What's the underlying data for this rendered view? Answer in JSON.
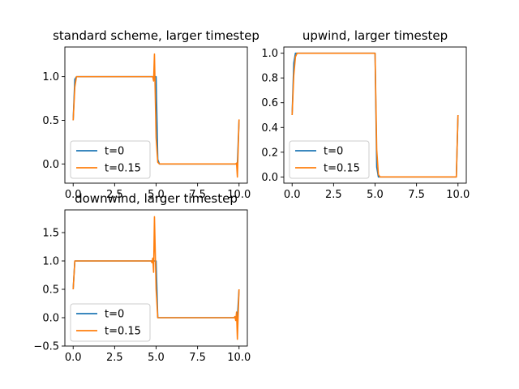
{
  "colors": {
    "series0": "#1f77b4",
    "series1": "#ff7f0e"
  },
  "chart_data": [
    {
      "type": "line",
      "title": "standard scheme, larger timestep",
      "xlim": [
        -0.5,
        10.5
      ],
      "ylim": [
        -0.22,
        1.34
      ],
      "xticks": [
        0,
        2.5,
        5,
        7.5,
        10
      ],
      "xtick_labels": [
        "0.0",
        "2.5",
        "5.0",
        "7.5",
        "10.0"
      ],
      "yticks": [
        0,
        0.5,
        1
      ],
      "ytick_labels": [
        "0.0",
        "0.5",
        "1.0"
      ],
      "legend": "lower-left",
      "grid": false,
      "series": [
        {
          "name": "t=0",
          "x": [
            0,
            0.1,
            0.2,
            4.8,
            4.9,
            5.0,
            5.1,
            5.2,
            9.8,
            9.9,
            10.0
          ],
          "y": [
            0.5,
            0.97,
            1.0,
            1.0,
            1.0,
            1.0,
            0.05,
            0.0,
            0.0,
            0.0,
            0.5
          ]
        },
        {
          "name": "t=0.15",
          "x": [
            0,
            0.1,
            0.2,
            4.8,
            4.85,
            4.9,
            5.0,
            5.1,
            5.2,
            9.8,
            9.85,
            9.9,
            10.0
          ],
          "y": [
            0.5,
            0.88,
            1.0,
            1.0,
            0.95,
            1.26,
            0.3,
            0.02,
            0.0,
            0.0,
            0.01,
            -0.15,
            0.51
          ]
        }
      ]
    },
    {
      "type": "line",
      "title": "upwind, larger timestep",
      "xlim": [
        -0.5,
        10.5
      ],
      "ylim": [
        -0.05,
        1.05
      ],
      "xticks": [
        0,
        2.5,
        5,
        7.5,
        10
      ],
      "xtick_labels": [
        "0.0",
        "2.5",
        "5.0",
        "7.5",
        "10.0"
      ],
      "yticks": [
        0,
        0.2,
        0.4,
        0.6,
        0.8,
        1
      ],
      "ytick_labels": [
        "0.0",
        "0.2",
        "0.4",
        "0.6",
        "0.8",
        "1.0"
      ],
      "legend": "lower-left",
      "grid": false,
      "series": [
        {
          "name": "t=0",
          "x": [
            0,
            0.1,
            0.2,
            5.0,
            5.1,
            5.2,
            9.8,
            9.9,
            10.0
          ],
          "y": [
            0.5,
            0.92,
            1.0,
            1.0,
            0.08,
            0.0,
            0.0,
            0.0,
            0.5
          ]
        },
        {
          "name": "t=0.15",
          "x": [
            0,
            0.1,
            0.2,
            0.3,
            5.0,
            5.1,
            5.2,
            5.3,
            9.8,
            9.9,
            10.0
          ],
          "y": [
            0.5,
            0.82,
            0.97,
            1.0,
            1.0,
            0.22,
            0.02,
            0.0,
            0.0,
            0.0,
            0.5
          ]
        }
      ]
    },
    {
      "type": "line",
      "title": "downwind, larger timestep",
      "xlim": [
        -0.5,
        10.5
      ],
      "ylim": [
        -0.5,
        1.9
      ],
      "xticks": [
        0,
        2.5,
        5,
        7.5,
        10
      ],
      "xtick_labels": [
        "0.0",
        "2.5",
        "5.0",
        "7.5",
        "10.0"
      ],
      "yticks": [
        -0.5,
        0,
        0.5,
        1,
        1.5
      ],
      "ytick_labels": [
        "−0.5",
        "0.0",
        "0.5",
        "1.0",
        "1.5"
      ],
      "legend": "lower-left",
      "grid": false,
      "series": [
        {
          "name": "t=0",
          "x": [
            0,
            0.1,
            0.2,
            4.8,
            4.9,
            5.0,
            5.1,
            5.2,
            9.8,
            9.9,
            10.0
          ],
          "y": [
            0.5,
            1.0,
            1.0,
            1.0,
            1.0,
            1.0,
            0.0,
            0.0,
            0.0,
            0.0,
            0.5
          ]
        },
        {
          "name": "t=0.15",
          "x": [
            0,
            0.1,
            0.2,
            4.7,
            4.75,
            4.8,
            4.85,
            4.9,
            5.0,
            5.1,
            5.2,
            9.7,
            9.75,
            9.8,
            9.85,
            9.9,
            10.0
          ],
          "y": [
            0.5,
            1.0,
            1.0,
            1.0,
            0.97,
            1.05,
            0.8,
            1.78,
            0.5,
            0.0,
            0.0,
            0.0,
            0.02,
            -0.05,
            0.1,
            -0.38,
            0.5
          ]
        }
      ]
    }
  ]
}
